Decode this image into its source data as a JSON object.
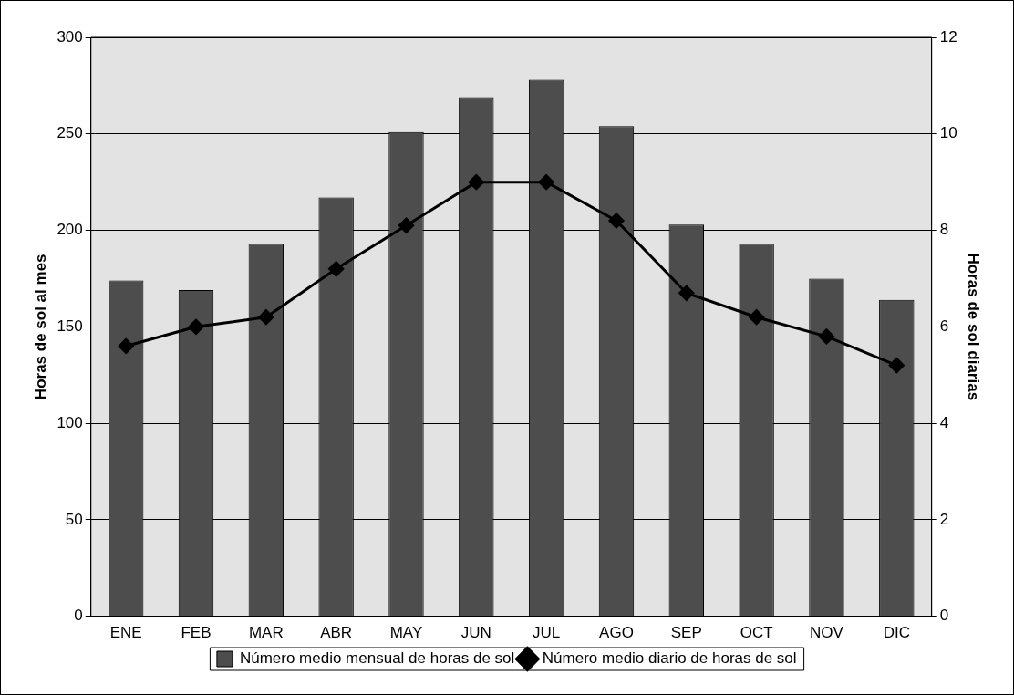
{
  "chart_data": {
    "type": "bar",
    "ylabel": "Horas de sol al mes",
    "y2label": "Horas de sol diarias",
    "categories": [
      "ENE",
      "FEB",
      "MAR",
      "ABR",
      "MAY",
      "JUN",
      "JUL",
      "AGO",
      "SEP",
      "OCT",
      "NOV",
      "DIC"
    ],
    "series": [
      {
        "name": "Número medio mensual de horas de sol",
        "color": "#4d4d4d",
        "values": [
          174,
          169,
          193,
          217,
          251,
          269,
          278,
          254,
          203,
          193,
          175,
          164
        ]
      },
      {
        "name": "Número medio diario de horas de sol",
        "type": "line",
        "axis": "y2",
        "color": "#000000",
        "marker": "diamond",
        "line_style": "solid",
        "values": [
          5.6,
          6.0,
          6.2,
          7.2,
          8.1,
          9.0,
          9.0,
          8.2,
          6.7,
          6.2,
          5.8,
          5.2
        ]
      }
    ],
    "ylim": [
      0,
      300
    ],
    "yticks": [
      0,
      50,
      100,
      150,
      200,
      250,
      300
    ],
    "y2lim": [
      0,
      12
    ],
    "y2ticks": [
      0,
      2,
      4,
      6,
      8,
      10,
      12
    ],
    "grid": "y",
    "legend": "bottom"
  }
}
